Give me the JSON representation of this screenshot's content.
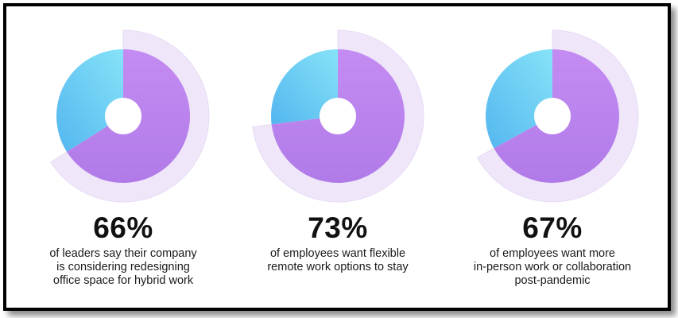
{
  "colors": {
    "purple": "#c48cf2",
    "purple_dark": "#b07ae8",
    "blue_light": "#86e3f8",
    "blue": "#54b6ef",
    "halo": "#efe6f9",
    "halo_edge": "#e7dcf5"
  },
  "chart_data": [
    {
      "type": "pie",
      "value": 66,
      "percent_label": "66%",
      "caption_lines": [
        "of leaders say their company",
        "is considering redesigning",
        "office space for hybrid work"
      ]
    },
    {
      "type": "pie",
      "value": 73,
      "percent_label": "73%",
      "caption_lines": [
        "of employees want flexible",
        "remote work options to stay"
      ]
    },
    {
      "type": "pie",
      "value": 67,
      "percent_label": "67%",
      "caption_lines": [
        "of employees want more",
        "in-person work or collaboration",
        "post-pandemic"
      ]
    }
  ]
}
